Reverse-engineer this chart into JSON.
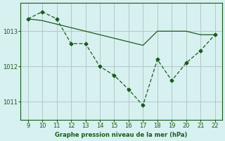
{
  "x_hours": [
    9,
    10,
    11,
    12,
    13,
    14,
    15,
    16,
    17,
    18,
    19,
    20,
    21,
    22
  ],
  "y_markers": [
    1013.35,
    1013.55,
    1013.35,
    1012.65,
    1012.65,
    1012.0,
    1011.75,
    1011.35,
    1010.9,
    1012.2,
    1011.6,
    1012.1,
    1012.45,
    1012.9
  ],
  "y_smooth": [
    1013.35,
    1013.3,
    1013.2,
    1013.1,
    1013.0,
    1012.9,
    1012.8,
    1012.7,
    1012.6,
    1013.0,
    1013.0,
    1013.0,
    1012.9,
    1012.9
  ],
  "line_color": "#1a5c1a",
  "bg_color": "#d7f0f0",
  "grid_color": "#b0c8c8",
  "text_color": "#1a5c1a",
  "xlabel": "Graphe pression niveau de la mer (hPa)",
  "yticks": [
    1011,
    1012,
    1013
  ],
  "xticks": [
    9,
    10,
    11,
    12,
    13,
    14,
    15,
    16,
    17,
    18,
    19,
    20,
    21,
    22
  ],
  "ylim": [
    1010.5,
    1013.8
  ],
  "xlim": [
    8.5,
    22.5
  ]
}
